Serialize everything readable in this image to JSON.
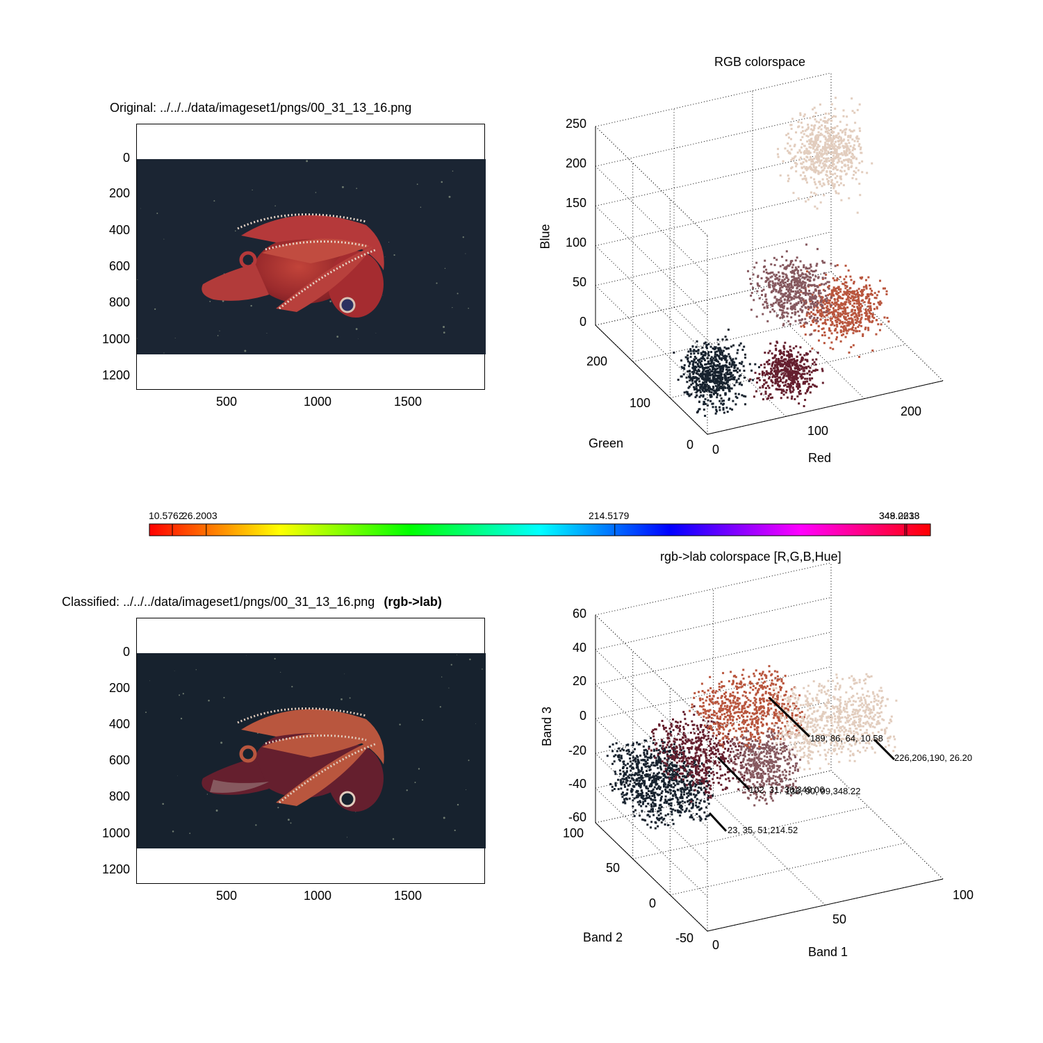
{
  "panels": {
    "original": {
      "title": "Original: ../../../data/imageset1/pngs/00_31_13_16.png",
      "yticks": [
        "0",
        "200",
        "400",
        "600",
        "800",
        "1000",
        "1200"
      ],
      "xticks": [
        "500",
        "1000",
        "1500"
      ]
    },
    "classified": {
      "title": "Classified: ../../../data/imageset1/pngs/00_31_13_16.png",
      "title_bold": "(rgb->lab)",
      "yticks": [
        "0",
        "200",
        "400",
        "600",
        "800",
        "1000",
        "1200"
      ],
      "xticks": [
        "500",
        "1000",
        "1500"
      ]
    },
    "rgb3d": {
      "title": "RGB colorspace",
      "zlabel": "Blue",
      "ylabel": "Green",
      "xlabel": "Red",
      "zticks": [
        "250",
        "200",
        "150",
        "100",
        "50",
        "0"
      ],
      "yticks": [
        "200",
        "100",
        "0"
      ],
      "xticks": [
        "0",
        "100",
        "200"
      ]
    },
    "lab3d": {
      "title": "rgb->lab colorspace [R,G,B,Hue]",
      "zlabel": "Band 3",
      "ylabel": "Band 2",
      "xlabel": "Band 1",
      "zticks": [
        "60",
        "40",
        "20",
        "0",
        "-20",
        "-40",
        "-60"
      ],
      "yticks": [
        "100",
        "50",
        "0",
        "-50"
      ],
      "xticks": [
        "0",
        "50",
        "100"
      ]
    }
  },
  "colorbar": {
    "labels": [
      "10.5762",
      "26.2003",
      "214.5179",
      "348.2238",
      "349.0613"
    ],
    "label_hues": [
      10.5762,
      26.2003,
      214.5179,
      348.2238,
      349.0613
    ]
  },
  "chart_data": [
    {
      "type": "scatter",
      "title": "RGB colorspace",
      "xlabel": "Red",
      "ylabel": "Green",
      "zlabel": "Blue",
      "xlim": [
        0,
        255
      ],
      "ylim": [
        0,
        255
      ],
      "zlim": [
        0,
        255
      ],
      "grid": true,
      "clusters": [
        {
          "color": "#17222e",
          "center": [
            23,
            35,
            51
          ]
        },
        {
          "color": "#651f2e",
          "center": [
            102,
            31,
            36
          ]
        },
        {
          "color": "#b9563e",
          "center": [
            189,
            86,
            64
          ]
        },
        {
          "color": "#86595f",
          "center": [
            136,
            90,
            99
          ]
        },
        {
          "color": "#e2cdbe",
          "center": [
            226,
            206,
            190
          ]
        }
      ]
    },
    {
      "type": "scatter",
      "title": "rgb->lab colorspace [R,G,B,Hue]",
      "xlabel": "Band 1",
      "ylabel": "Band 2",
      "zlabel": "Band 3",
      "xlim": [
        0,
        100
      ],
      "ylim": [
        -50,
        100
      ],
      "zlim": [
        -60,
        60
      ],
      "grid": true,
      "annotations": [
        {
          "text": "189, 86, 64, 10.58",
          "color": "#b9563e"
        },
        {
          "text": "226,206,190, 26.20",
          "color": "#e2cdbe"
        },
        {
          "text": "102, 31, 36,349.06",
          "color": "#651f2e"
        },
        {
          "text": "136, 90, 99,348.22",
          "color": "#86595f"
        },
        {
          "text": "23, 35, 51,214.52",
          "color": "#17222e"
        }
      ]
    }
  ]
}
